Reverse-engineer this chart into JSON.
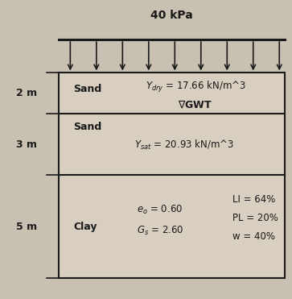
{
  "title": "40 kPa",
  "background_color": "#c8c0b0",
  "box_color": "#d8cfc0",
  "box_edge_color": "#1a1a1a",
  "arrow_color": "#1a1a1a",
  "text_color": "#1a1a1a",
  "load_label": "40 kPa",
  "num_arrows": 9,
  "layer1_label": "2 m",
  "layer1_soil": "Sand",
  "layer1_gamma": "Y_dry = 17.66 kN/m^3",
  "layer1_gwt": "GWT",
  "layer2_label": "3 m",
  "layer2_soil": "Sand",
  "layer2_gamma": "Y_sat = 20.93 kN/m^3",
  "layer3_label": "5 m",
  "layer3_soil": "Clay",
  "layer3_eo": "eo = 0.60",
  "layer3_Gs": "Gs = 2.60",
  "layer3_LI": "LI = 64%",
  "layer3_PL": "PL = 20%",
  "layer3_w": "w = 40%"
}
